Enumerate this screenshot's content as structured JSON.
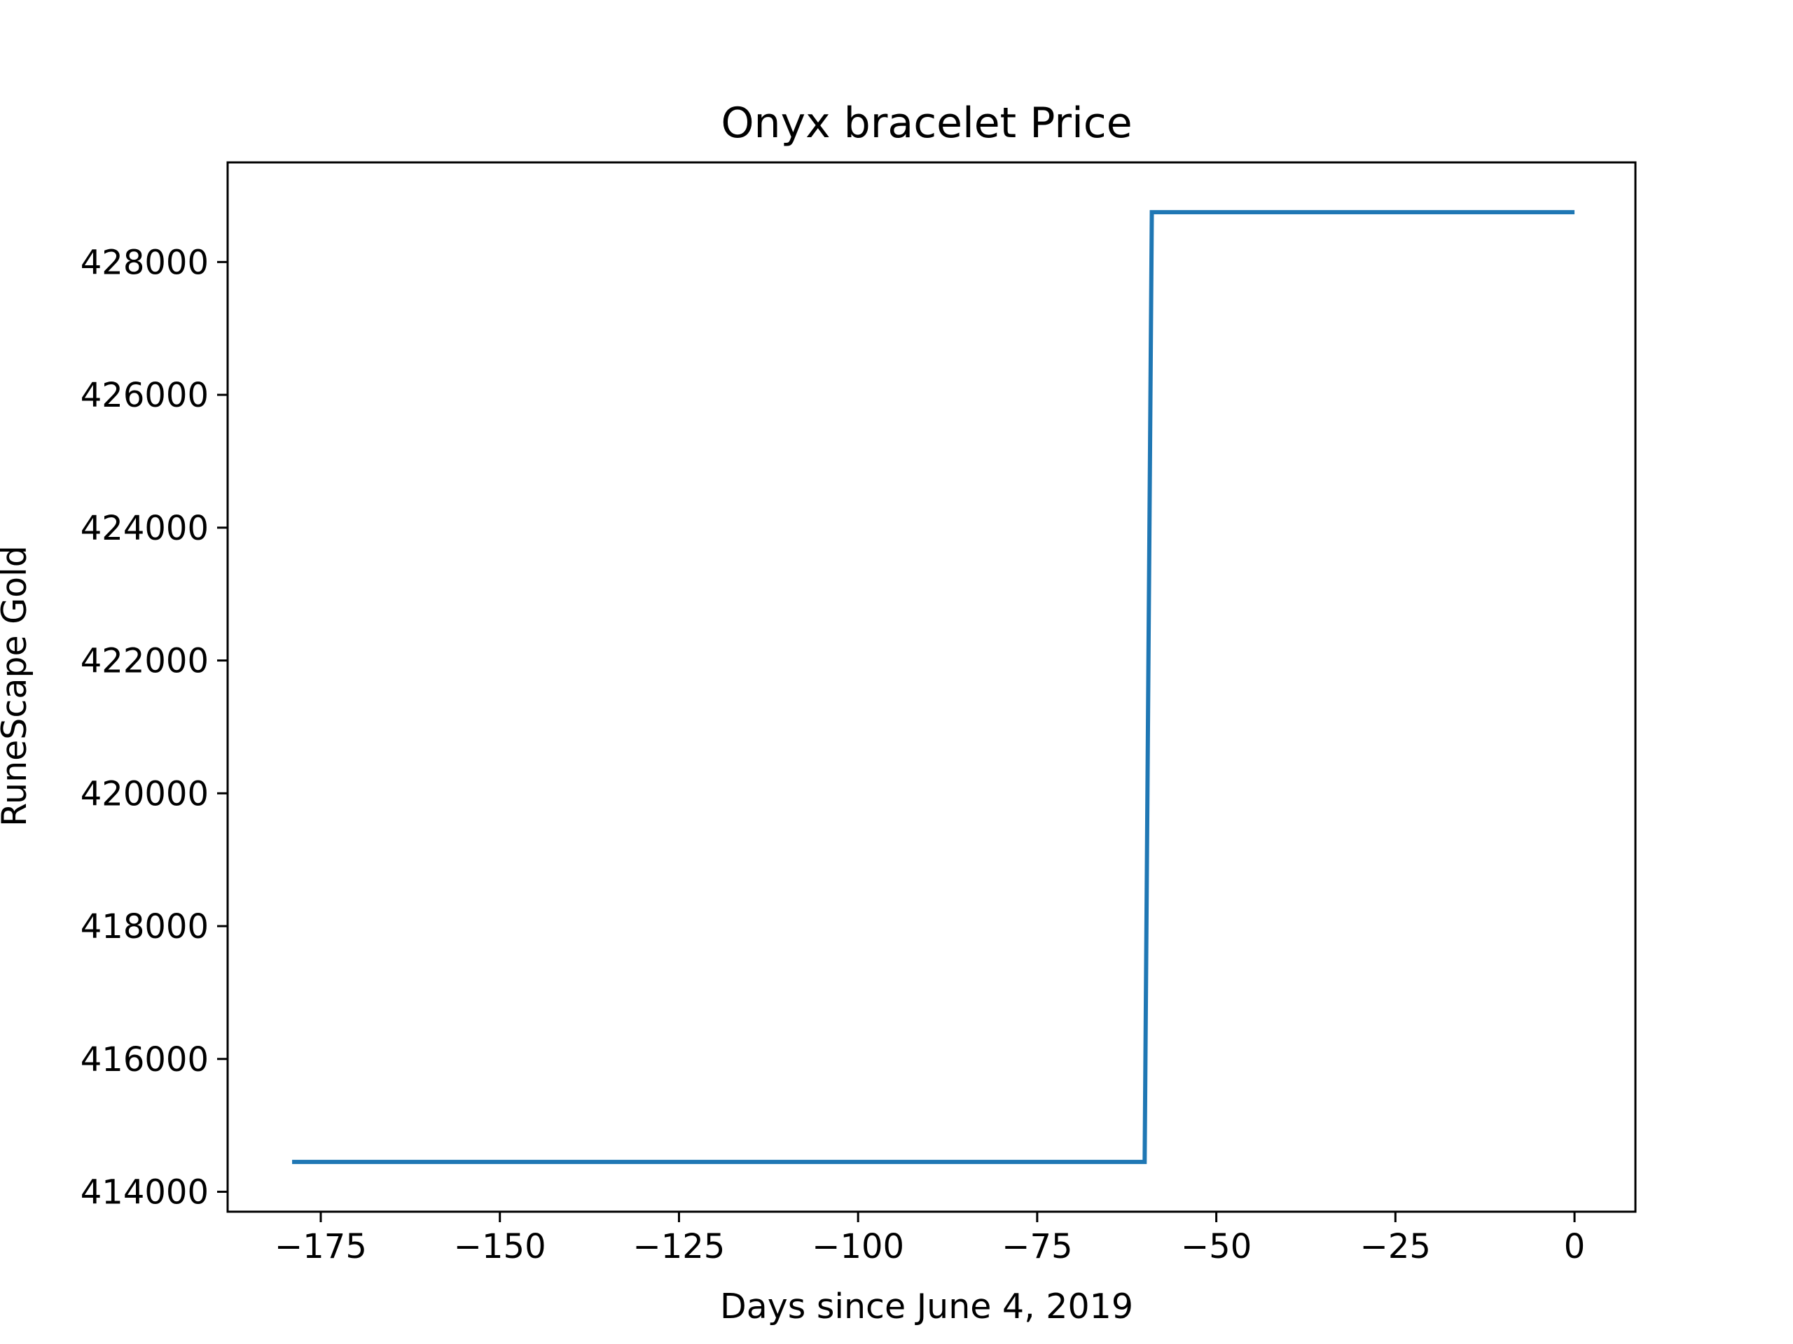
{
  "chart_data": {
    "type": "line",
    "title": "Onyx bracelet Price",
    "xlabel": "Days since June 4, 2019",
    "ylabel": "RuneScape Gold",
    "xlim": [
      -188,
      8.5
    ],
    "ylim": [
      413700,
      429500
    ],
    "x_ticks": [
      -175,
      -150,
      -125,
      -100,
      -75,
      -50,
      -25,
      0
    ],
    "x_tick_labels": [
      "−175",
      "−150",
      "−125",
      "−100",
      "−75",
      "−50",
      "−25",
      "0"
    ],
    "y_ticks": [
      414000,
      416000,
      418000,
      420000,
      422000,
      424000,
      426000,
      428000
    ],
    "y_tick_labels": [
      "414000",
      "416000",
      "418000",
      "420000",
      "422000",
      "424000",
      "426000",
      "428000"
    ],
    "grid": false,
    "line_color": "#1f77b4",
    "series": [
      {
        "x": [
          -179,
          -60,
          -59,
          0
        ],
        "y": [
          414450,
          414450,
          428750,
          428750
        ]
      }
    ]
  }
}
